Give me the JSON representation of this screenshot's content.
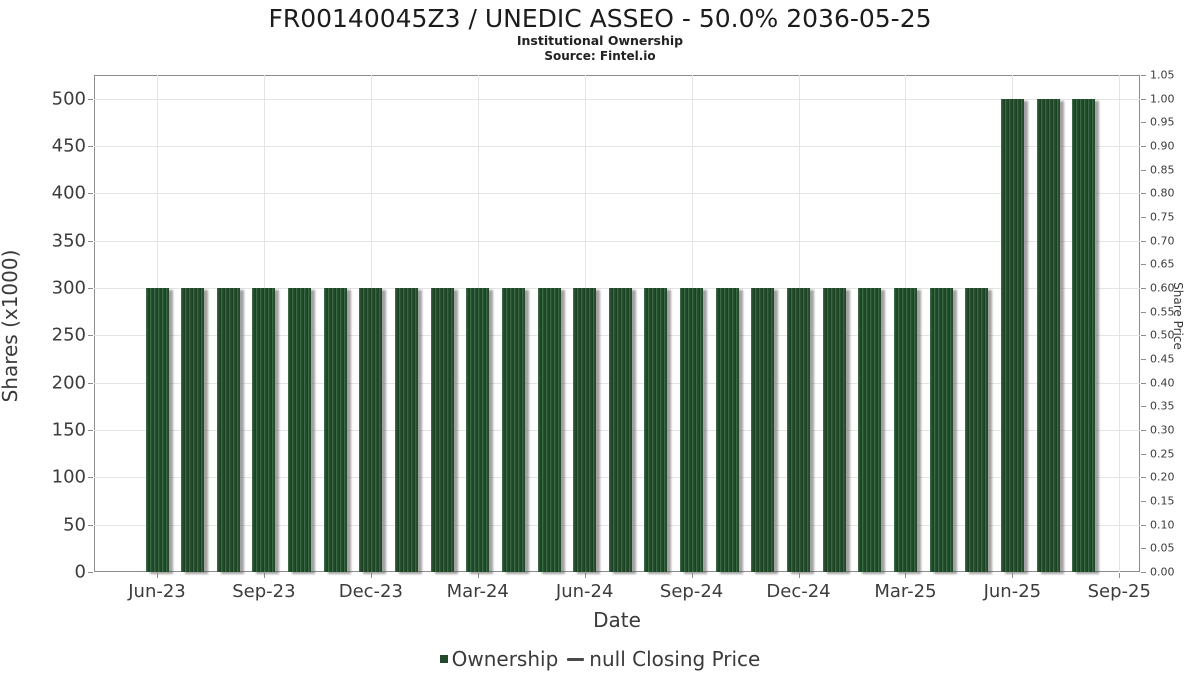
{
  "header": {
    "title": "FR00140045Z3 / UNEDIC ASSEO - 50.0% 2036-05-25",
    "subtitle": "Institutional Ownership",
    "source": "Source: Fintel.io"
  },
  "legend": {
    "items": [
      {
        "label": "Ownership",
        "marker": "square",
        "color": "#234b2b"
      },
      {
        "label": "null Closing Price",
        "marker": "line",
        "color": "#4a4a4a"
      }
    ]
  },
  "colors": {
    "bar_green_dark": "#1c4124",
    "bar_green_mid": "#27512f",
    "bar_green_light": "#3a6a45",
    "bar_shadow": "#9a9a9a",
    "gridline": "#e4e4e4",
    "plot_border": "#8c8c8c",
    "text": "#3c3c3c"
  },
  "chart_data": {
    "type": "bar",
    "title": "FR00140045Z3 / UNEDIC ASSEO - 50.0% 2036-05-25",
    "subtitle": "Institutional Ownership",
    "source": "Source: Fintel.io",
    "xlabel": "Date",
    "ylabel_left": "Shares (x1000)",
    "ylabel_right": "Share Price",
    "grid": true,
    "legend_position": "bottom",
    "categories": [
      "Jun-23",
      "Jul-23",
      "Aug-23",
      "Sep-23",
      "Oct-23",
      "Nov-23",
      "Dec-23",
      "Jan-24",
      "Feb-24",
      "Mar-24",
      "Apr-24",
      "May-24",
      "Jun-24",
      "Jul-24",
      "Aug-24",
      "Sep-24",
      "Oct-24",
      "Nov-24",
      "Dec-24",
      "Jan-25",
      "Feb-25",
      "Mar-25",
      "Apr-25",
      "May-25",
      "Jun-25",
      "Jul-25",
      "Aug-25"
    ],
    "series": [
      {
        "name": "Ownership",
        "type": "bar",
        "values": [
          300,
          300,
          300,
          300,
          300,
          300,
          300,
          300,
          300,
          300,
          300,
          300,
          300,
          300,
          300,
          300,
          300,
          300,
          300,
          300,
          300,
          300,
          300,
          300,
          500,
          500,
          500
        ]
      },
      {
        "name": "null Closing Price",
        "type": "line",
        "values": []
      }
    ],
    "x_tick_labels": [
      "Jun-23",
      "Sep-23",
      "Dec-23",
      "Mar-24",
      "Jun-24",
      "Sep-24",
      "Dec-24",
      "Mar-25",
      "Jun-25",
      "Sep-25"
    ],
    "y_left_ticks": [
      0,
      50,
      100,
      150,
      200,
      250,
      300,
      350,
      400,
      450,
      500
    ],
    "y_left_lim": [
      0,
      525
    ],
    "y_right_ticks": [
      "0.00",
      "0.05",
      "0.10",
      "0.15",
      "0.20",
      "0.25",
      "0.30",
      "0.35",
      "0.40",
      "0.45",
      "0.50",
      "0.55",
      "0.60",
      "0.65",
      "0.70",
      "0.75",
      "0.80",
      "0.85",
      "0.90",
      "0.95",
      "1.00",
      "1.05"
    ],
    "y_right_lim": [
      0,
      1.05
    ]
  }
}
